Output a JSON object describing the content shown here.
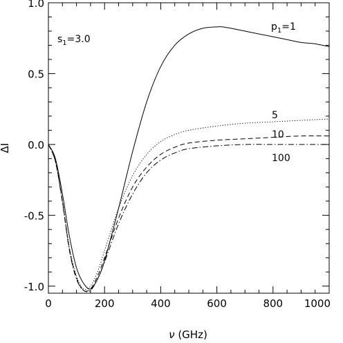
{
  "chart_data": {
    "type": "line",
    "xlabel": "ν (GHz)",
    "ylabel": "ΔI",
    "xlim": [
      0,
      1000
    ],
    "ylim": [
      -1.05,
      1.0
    ],
    "grid": false,
    "xticks": [
      0,
      200,
      400,
      600,
      800,
      1000
    ],
    "xtick_labels": [
      "0",
      "200",
      "400",
      "600",
      "800",
      "1000"
    ],
    "yticks": [
      -1.0,
      -0.5,
      0.0,
      0.5,
      1.0
    ],
    "ytick_labels": [
      "-1.0",
      "-0.5",
      "0.0",
      "0.5",
      "1.0"
    ],
    "annotation": "s1=3.0",
    "series": [
      {
        "name": "p1=1",
        "style": "solid",
        "x": [
          0,
          25,
          50,
          75,
          100,
          125,
          150,
          175,
          200,
          250,
          300,
          350,
          400,
          450,
          500,
          550,
          600,
          620,
          650,
          700,
          750,
          800,
          850,
          900,
          950,
          1000
        ],
        "y": [
          0.0,
          -0.1,
          -0.35,
          -0.65,
          -0.87,
          -0.98,
          -1.02,
          -0.95,
          -0.82,
          -0.45,
          -0.05,
          0.3,
          0.55,
          0.7,
          0.78,
          0.82,
          0.83,
          0.83,
          0.82,
          0.8,
          0.78,
          0.76,
          0.74,
          0.72,
          0.71,
          0.69
        ]
      },
      {
        "name": "5",
        "style": "dotted",
        "x": [
          0,
          25,
          50,
          75,
          100,
          125,
          150,
          175,
          200,
          250,
          300,
          350,
          400,
          450,
          500,
          600,
          700,
          800,
          900,
          1000
        ],
        "y": [
          0.0,
          -0.12,
          -0.4,
          -0.73,
          -0.93,
          -1.02,
          -1.0,
          -0.9,
          -0.75,
          -0.45,
          -0.22,
          -0.07,
          0.02,
          0.07,
          0.1,
          0.13,
          0.15,
          0.16,
          0.17,
          0.18
        ]
      },
      {
        "name": "10",
        "style": "dashed",
        "x": [
          0,
          25,
          50,
          75,
          100,
          125,
          150,
          175,
          200,
          250,
          300,
          350,
          400,
          450,
          500,
          600,
          700,
          800,
          900,
          1000
        ],
        "y": [
          0.0,
          -0.12,
          -0.4,
          -0.74,
          -0.94,
          -1.03,
          -1.02,
          -0.93,
          -0.8,
          -0.52,
          -0.3,
          -0.16,
          -0.07,
          -0.02,
          0.01,
          0.03,
          0.04,
          0.05,
          0.06,
          0.06
        ]
      },
      {
        "name": "100",
        "style": "dashdot",
        "x": [
          0,
          25,
          50,
          75,
          100,
          125,
          150,
          175,
          200,
          250,
          300,
          350,
          400,
          450,
          500,
          600,
          700,
          800,
          900,
          1000
        ],
        "y": [
          0.0,
          -0.12,
          -0.41,
          -0.75,
          -0.95,
          -1.03,
          -1.03,
          -0.95,
          -0.83,
          -0.56,
          -0.35,
          -0.2,
          -0.11,
          -0.06,
          -0.03,
          -0.01,
          0.0,
          0.0,
          0.0,
          0.0
        ]
      }
    ]
  },
  "labels": {
    "annotation_s": "s",
    "annotation_s_sub": "1",
    "annotation_s_rest": "=3.0",
    "p_label_p": "p",
    "p_label_sub": "1",
    "p_label_rest": "=1",
    "label_5": "5",
    "label_10": "10",
    "label_100": "100",
    "xlabel_nu": "ν",
    "xlabel_unit": " (GHz)",
    "ylabel": "ΔI"
  }
}
